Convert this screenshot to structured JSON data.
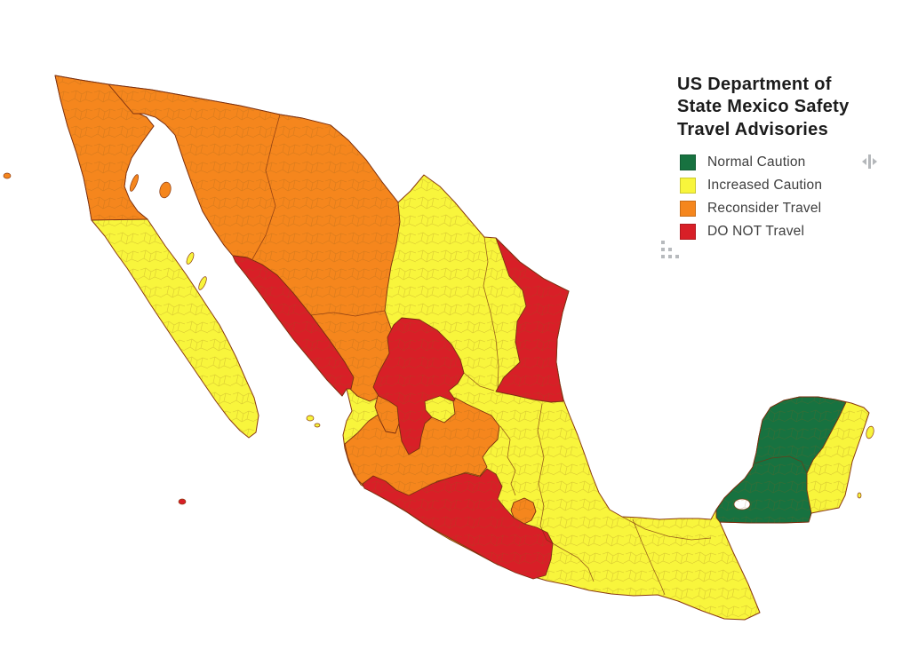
{
  "title": {
    "lines": [
      "US Department of",
      "State Mexico Safety",
      "Travel Advisories"
    ]
  },
  "legend": {
    "items": [
      {
        "label": "Normal Caution",
        "level": "normal"
      },
      {
        "label": "Increased Caution",
        "level": "increased"
      },
      {
        "label": "Reconsider Travel",
        "level": "reconsider"
      },
      {
        "label": "DO NOT Travel",
        "level": "do_not"
      }
    ],
    "colors": {
      "normal": "#177240",
      "increased": "#F8F53C",
      "reconsider": "#F5861D",
      "do_not": "#D81F27"
    }
  },
  "icons": {
    "splitter": "horizontal-resize-handle-icon",
    "grip": "drag-grip-dots-icon"
  },
  "map": {
    "water_color": "#FFFFFF",
    "border_color": "#7A2F10",
    "coast_color": "#8A3A12",
    "states": [
      {
        "name": "Baja California",
        "advisory": "reconsider"
      },
      {
        "name": "Baja California Sur",
        "advisory": "increased"
      },
      {
        "name": "Sonora",
        "advisory": "reconsider"
      },
      {
        "name": "Chihuahua",
        "advisory": "reconsider"
      },
      {
        "name": "Coahuila",
        "advisory": "increased"
      },
      {
        "name": "Nuevo Leon",
        "advisory": "increased"
      },
      {
        "name": "Tamaulipas",
        "advisory": "do_not"
      },
      {
        "name": "Sinaloa",
        "advisory": "do_not"
      },
      {
        "name": "Durango",
        "advisory": "reconsider"
      },
      {
        "name": "Zacatecas",
        "advisory": "do_not"
      },
      {
        "name": "San Luis Potosi",
        "advisory": "increased"
      },
      {
        "name": "Nayarit",
        "advisory": "increased"
      },
      {
        "name": "Aguascalientes",
        "advisory": "increased"
      },
      {
        "name": "Jalisco",
        "advisory": "reconsider"
      },
      {
        "name": "Guanajuato",
        "advisory": "reconsider"
      },
      {
        "name": "Queretaro",
        "advisory": "increased"
      },
      {
        "name": "Hidalgo",
        "advisory": "increased"
      },
      {
        "name": "Colima",
        "advisory": "do_not"
      },
      {
        "name": "Michoacan",
        "advisory": "do_not"
      },
      {
        "name": "Mexico State",
        "advisory": "increased"
      },
      {
        "name": "Mexico City",
        "advisory": "increased"
      },
      {
        "name": "Morelos",
        "advisory": "reconsider"
      },
      {
        "name": "Tlaxcala",
        "advisory": "increased"
      },
      {
        "name": "Puebla",
        "advisory": "increased"
      },
      {
        "name": "Guerrero",
        "advisory": "do_not"
      },
      {
        "name": "Veracruz",
        "advisory": "increased"
      },
      {
        "name": "Oaxaca",
        "advisory": "increased"
      },
      {
        "name": "Chiapas",
        "advisory": "increased"
      },
      {
        "name": "Tabasco",
        "advisory": "increased"
      },
      {
        "name": "Campeche",
        "advisory": "normal"
      },
      {
        "name": "Yucatan",
        "advisory": "normal"
      },
      {
        "name": "Quintana Roo",
        "advisory": "increased"
      }
    ]
  }
}
